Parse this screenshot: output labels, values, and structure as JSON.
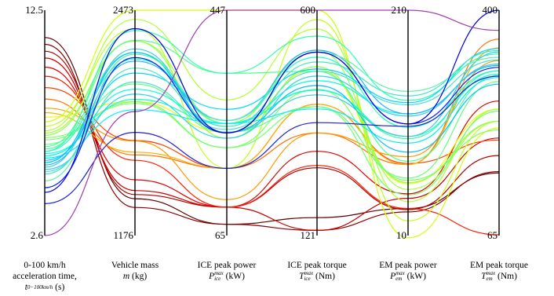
{
  "chart_data": {
    "type": "parallel-coordinates",
    "axes": [
      {
        "key": "t",
        "label_line1": "0-100 km/h",
        "label_line2": "acceleration time,",
        "symbol": "t",
        "sub": "0−100km/h",
        "sup": "",
        "unit": "(s)",
        "min": 2.6,
        "max": 12.5,
        "min_label": "2.6",
        "max_label": "12.5"
      },
      {
        "key": "m",
        "label_line1": "Vehicle mass",
        "label_line2": "",
        "symbol": "m",
        "sub": "",
        "sup": "",
        "unit": "(kg)",
        "min": 1176,
        "max": 2473,
        "min_label": "1176",
        "max_label": "2473"
      },
      {
        "key": "pice",
        "label_line1": "ICE peak power",
        "label_line2": "",
        "symbol": "P",
        "sub": "ice",
        "sup": "max",
        "unit": "(kW)",
        "min": 65,
        "max": 447,
        "min_label": "65",
        "max_label": "447"
      },
      {
        "key": "tice",
        "label_line1": "ICE peak torque",
        "label_line2": "",
        "symbol": "T",
        "sub": "ice",
        "sup": "max",
        "unit": "(Nm)",
        "min": 121,
        "max": 600,
        "min_label": "121",
        "max_label": "600"
      },
      {
        "key": "pem",
        "label_line1": "EM peak power",
        "label_line2": "",
        "symbol": "P",
        "sub": "em",
        "sup": "max",
        "unit": "(kW)",
        "min": 10,
        "max": 210,
        "min_label": "10",
        "max_label": "210"
      },
      {
        "key": "tem",
        "label_line1": "EM peak torque",
        "label_line2": "",
        "symbol": "T",
        "sub": "em",
        "sup": "max",
        "unit": "(Nm)",
        "min": 65,
        "max": 400,
        "min_label": "65",
        "max_label": "400"
      }
    ],
    "colormap": "jet (by acceleration time)",
    "series": [
      {
        "values": [
          11.3,
          1388,
          84,
          159,
          34,
          158
        ],
        "color": "#5c0000"
      },
      {
        "values": [
          11.0,
          1338,
          84,
          132,
          31,
          160
        ],
        "color": "#8b0000"
      },
      {
        "values": [
          10.7,
          1412,
          113,
          265,
          33,
          184
        ],
        "color": "#b00000"
      },
      {
        "values": [
          10.4,
          1435,
          113,
          132,
          43,
          210
        ],
        "color": "#cc0000"
      },
      {
        "values": [
          10.0,
          1497,
          113,
          300,
          47,
          265
        ],
        "color": "#e00000"
      },
      {
        "values": [
          9.6,
          1609,
          113,
          270,
          34,
          66
        ],
        "color": "#ff1a00"
      },
      {
        "values": [
          9.1,
          1723,
          179,
          400,
          74,
          207
        ],
        "color": "#ff4000"
      },
      {
        "values": [
          8.6,
          1640,
          179,
          339,
          73,
          357
        ],
        "color": "#ff7000"
      },
      {
        "values": [
          8.2,
          1720,
          126,
          339,
          80,
          325
        ],
        "color": "#ff9a00"
      },
      {
        "values": [
          8.0,
          1656,
          179,
          400,
          73,
          344
        ],
        "color": "#ffb000"
      },
      {
        "values": [
          7.8,
          1947,
          240,
          475,
          56,
          253
        ],
        "color": "#e6ff00"
      },
      {
        "values": [
          7.6,
          2473,
          447,
          600,
          8,
          225
        ],
        "color": "#d0ff10"
      },
      {
        "values": [
          7.4,
          2366,
          179,
          580,
          23,
          235
        ],
        "color": "#c0ff20"
      },
      {
        "values": [
          7.2,
          2420,
          295,
          560,
          40,
          253
        ],
        "color": "#b0ff30"
      },
      {
        "values": [
          7.1,
          2296,
          255,
          515,
          51,
          235
        ],
        "color": "#a0ff40"
      },
      {
        "values": [
          7.0,
          2296,
          230,
          480,
          57,
          235
        ],
        "color": "#90ff50"
      },
      {
        "values": [
          6.9,
          1936,
          214,
          432,
          59,
          222
        ],
        "color": "#80ff60"
      },
      {
        "values": [
          6.8,
          1945,
          214,
          395,
          46,
          250
        ],
        "color": "#70ff70"
      },
      {
        "values": [
          6.6,
          2048,
          240,
          395,
          61,
          294
        ],
        "color": "#60ff80"
      },
      {
        "values": [
          6.5,
          2300,
          340,
          470,
          76,
          303
        ],
        "color": "#50ff90"
      },
      {
        "values": [
          6.4,
          2230,
          255,
          431,
          96,
          310
        ],
        "color": "#40ffa0"
      },
      {
        "values": [
          6.3,
          2356,
          340,
          545,
          130,
          335
        ],
        "color": "#30ffb0"
      },
      {
        "values": [
          6.3,
          2192,
          260,
          500,
          106,
          310
        ],
        "color": "#20ffc0"
      },
      {
        "values": [
          6.2,
          1960,
          255,
          430,
          98,
          305
        ],
        "color": "#10ffd0"
      },
      {
        "values": [
          6.1,
          2018,
          255,
          450,
          118,
          318
        ],
        "color": "#00ffe0"
      },
      {
        "values": [
          6.0,
          1900,
          255,
          390,
          92,
          300
        ],
        "color": "#00f0ff"
      },
      {
        "values": [
          5.9,
          2111,
          279,
          475,
          128,
          343
        ],
        "color": "#00d8ff"
      },
      {
        "values": [
          5.8,
          2230,
          240,
          440,
          84,
          290
        ],
        "color": "#00c0ff"
      },
      {
        "values": [
          5.7,
          2180,
          260,
          515,
          118,
          318
        ],
        "color": "#20b0ff"
      },
      {
        "values": [
          5.6,
          2250,
          240,
          420,
          98,
          338
        ],
        "color": "#40c8e0"
      },
      {
        "values": [
          5.5,
          1990,
          230,
          460,
          116,
          320
        ],
        "color": "#30d0f0"
      },
      {
        "values": [
          5.4,
          2060,
          245,
          470,
          126,
          326
        ],
        "color": "#50e0d0"
      },
      {
        "values": [
          5.3,
          2140,
          250,
          490,
          134,
          340
        ],
        "color": "#40e8c0"
      },
      {
        "values": [
          5.0,
          2220,
          260,
          510,
          138,
          330
        ],
        "color": "#60f0b0"
      },
      {
        "values": [
          4.7,
          2200,
          239,
          511,
          109,
          315
        ],
        "color": "#0020ff"
      },
      {
        "values": [
          4.5,
          2367,
          239,
          511,
          109,
          400
        ],
        "color": "#0000e6"
      },
      {
        "values": [
          4.0,
          1770,
          179,
          361,
          107,
          302
        ],
        "color": "#2020d0"
      },
      {
        "values": [
          2.6,
          1890,
          447,
          600,
          210,
          370
        ],
        "color": "#a040b0"
      }
    ]
  }
}
